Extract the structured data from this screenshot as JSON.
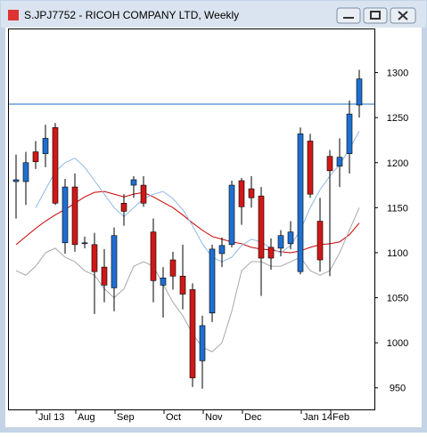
{
  "window": {
    "title": "S.JPJ7752 - RICOH COMPANY LTD, Weekly"
  },
  "chart_data": {
    "type": "candlestick",
    "categories": [
      null,
      null,
      null,
      "Jul 13",
      null,
      null,
      null,
      "Aug",
      null,
      null,
      null,
      "Sep",
      null,
      null,
      null,
      null,
      "Oct",
      null,
      null,
      null,
      "Nov",
      null,
      null,
      null,
      "Dec",
      null,
      null,
      null,
      null,
      null,
      "Jan 14",
      null,
      null,
      "Feb",
      null,
      null
    ],
    "open": [
      1179,
      1179,
      1212,
      1210,
      1239,
      1111,
      1173,
      1110,
      1109,
      1084,
      1061,
      1155,
      1175,
      1175,
      1123,
      1064,
      1092,
      1074,
      1059,
      980,
      1033,
      1099,
      1109,
      1180,
      1171,
      1163,
      1106,
      1105,
      1110,
      1079,
      1224,
      1135,
      1207,
      1196,
      1210,
      1264
    ],
    "high": [
      1209,
      1212,
      1224,
      1242,
      1244,
      1182,
      1188,
      1118,
      1122,
      1104,
      1128,
      1165,
      1185,
      1185,
      1138,
      1084,
      1101,
      1109,
      1066,
      1030,
      1109,
      1117,
      1180,
      1183,
      1185,
      1173,
      1116,
      1125,
      1135,
      1239,
      1232,
      1161,
      1214,
      1227,
      1269,
      1303
    ],
    "low": [
      1138,
      1153,
      1193,
      1195,
      1153,
      1099,
      1101,
      1105,
      1032,
      1045,
      1035,
      1130,
      1161,
      1151,
      1045,
      1028,
      1059,
      1037,
      951,
      949,
      1023,
      1084,
      1106,
      1131,
      1150,
      1052,
      1081,
      1096,
      1104,
      1076,
      1161,
      1079,
      1074,
      1173,
      1188,
      1250
    ],
    "close": [
      1181,
      1200,
      1201,
      1227,
      1155,
      1173,
      1109,
      1111,
      1079,
      1064,
      1119,
      1146,
      1181,
      1155,
      1069,
      1072,
      1074,
      1054,
      961,
      1019,
      1104,
      1108,
      1175,
      1151,
      1161,
      1094,
      1094,
      1119,
      1123,
      1232,
      1165,
      1092,
      1191,
      1206,
      1254,
      1293
    ],
    "up_color": "#1f6fd0",
    "down_color": "#d01818",
    "lines": [
      {
        "color": "#cc0000",
        "values": [
          1109,
          1118,
          1127,
          1135,
          1142,
          1148,
          1155,
          1162,
          1167,
          1168,
          1165,
          1162,
          1165,
          1167,
          1162,
          1156,
          1150,
          1142,
          1133,
          1125,
          1118,
          1115,
          1112,
          1110,
          1106,
          1104,
          1103,
          1101,
          1100,
          1102,
          1106,
          1109,
          1110,
          1112,
          1120,
          1133
        ]
      },
      {
        "color": "#8fb8e8",
        "values": [
          null,
          null,
          1150,
          1170,
          1190,
          1200,
          1205,
          1195,
          1180,
          1165,
          1150,
          1140,
          1150,
          1160,
          1165,
          1168,
          1160,
          1148,
          1130,
          1110,
          1095,
          1090,
          1095,
          1108,
          1115,
          1112,
          1105,
          1100,
          1108,
          1125,
          1150,
          1170,
          1185,
          1198,
          1215,
          1235
        ]
      },
      {
        "color": "#a8a8a8",
        "values": [
          1080,
          1075,
          1085,
          1100,
          1105,
          1095,
          1090,
          1080,
          1075,
          1060,
          1050,
          1060,
          1085,
          1090,
          1085,
          1065,
          1045,
          1030,
          1010,
          995,
          990,
          1000,
          1035,
          1080,
          1090,
          1090,
          1085,
          1085,
          1090,
          1095,
          1080,
          1075,
          1080,
          1100,
          1125,
          1150
        ]
      }
    ],
    "hline": 1265,
    "hline_color": "#1a6fc0",
    "ylim": [
      926,
      1348
    ],
    "yticks": [
      950,
      1000,
      1050,
      1100,
      1150,
      1200,
      1250,
      1300
    ]
  }
}
